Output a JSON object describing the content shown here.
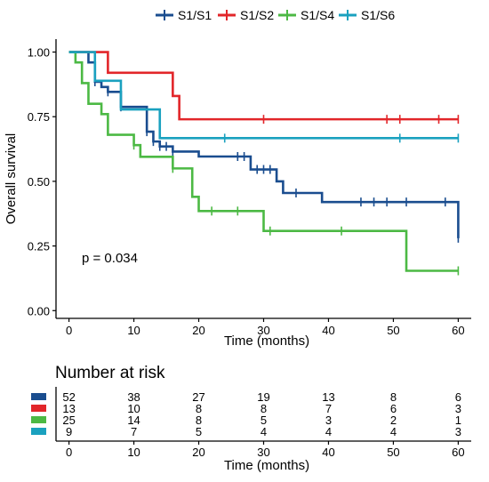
{
  "chart_data": [
    {
      "type": "line",
      "subtype": "kaplan-meier",
      "title": "",
      "xlabel": "Time (months)",
      "ylabel": "Overall survival",
      "xlim": [
        -2,
        62
      ],
      "ylim": [
        -0.03,
        1.05
      ],
      "x_ticks": [
        "0",
        "10",
        "20",
        "30",
        "40",
        "50",
        "60"
      ],
      "y_ticks": [
        "0.00",
        "0.25",
        "0.50",
        "0.75",
        "1.00"
      ],
      "grid": false,
      "legend_position": "top",
      "annotation": "p = 0.034",
      "series": [
        {
          "name": "S1/S1",
          "color": "#1a4d8f",
          "steps": [
            [
              0,
              1.0
            ],
            [
              3,
              0.96
            ],
            [
              4,
              0.885
            ],
            [
              5,
              0.865
            ],
            [
              6,
              0.846
            ],
            [
              8,
              0.788
            ],
            [
              12,
              0.692
            ],
            [
              13,
              0.654
            ],
            [
              14,
              0.635
            ],
            [
              16,
              0.615
            ],
            [
              20,
              0.596
            ],
            [
              28,
              0.546
            ],
            [
              32,
              0.5
            ],
            [
              33,
              0.455
            ],
            [
              39,
              0.42
            ],
            [
              60,
              0.42
            ],
            [
              60,
              0.28
            ]
          ],
          "censored": [
            [
              4,
              0.885
            ],
            [
              6,
              0.846
            ],
            [
              8,
              0.788
            ],
            [
              12,
              0.692
            ],
            [
              13,
              0.654
            ],
            [
              14,
              0.635
            ],
            [
              15,
              0.635
            ],
            [
              16,
              0.615
            ],
            [
              26,
              0.596
            ],
            [
              27,
              0.596
            ],
            [
              29,
              0.546
            ],
            [
              30,
              0.546
            ],
            [
              31,
              0.546
            ],
            [
              35,
              0.455
            ],
            [
              45,
              0.42
            ],
            [
              47,
              0.42
            ],
            [
              49,
              0.42
            ],
            [
              52,
              0.42
            ],
            [
              58,
              0.42
            ],
            [
              60,
              0.28
            ]
          ]
        },
        {
          "name": "S1/S2",
          "color": "#e2262a",
          "steps": [
            [
              0,
              1.0
            ],
            [
              6,
              0.92
            ],
            [
              16,
              0.83
            ],
            [
              17,
              0.74
            ],
            [
              60,
              0.74
            ]
          ],
          "censored": [
            [
              30,
              0.74
            ],
            [
              49,
              0.74
            ],
            [
              51,
              0.74
            ],
            [
              57,
              0.74
            ],
            [
              60,
              0.74
            ]
          ]
        },
        {
          "name": "S1/S4",
          "color": "#4cb944",
          "steps": [
            [
              0,
              1.0
            ],
            [
              1,
              0.96
            ],
            [
              2,
              0.88
            ],
            [
              3,
              0.8
            ],
            [
              5,
              0.76
            ],
            [
              6,
              0.68
            ],
            [
              10,
              0.64
            ],
            [
              11,
              0.595
            ],
            [
              16,
              0.55
            ],
            [
              19,
              0.44
            ],
            [
              20,
              0.385
            ],
            [
              30,
              0.308
            ],
            [
              52,
              0.154
            ],
            [
              60,
              0.154
            ]
          ],
          "censored": [
            [
              10,
              0.64
            ],
            [
              16,
              0.55
            ],
            [
              22,
              0.385
            ],
            [
              26,
              0.385
            ],
            [
              31,
              0.308
            ],
            [
              42,
              0.308
            ],
            [
              60,
              0.154
            ]
          ]
        },
        {
          "name": "S1/S6",
          "color": "#1aa1bf",
          "steps": [
            [
              0,
              1.0
            ],
            [
              4,
              0.889
            ],
            [
              8,
              0.778
            ],
            [
              10,
              0.778
            ],
            [
              14,
              0.667
            ],
            [
              60,
              0.667
            ]
          ],
          "censored": [
            [
              24,
              0.667
            ],
            [
              51,
              0.667
            ],
            [
              60,
              0.667
            ]
          ]
        }
      ]
    },
    {
      "type": "table",
      "title": "Number at risk",
      "xlabel": "Time (months)",
      "x_ticks": [
        "0",
        "10",
        "20",
        "30",
        "40",
        "50",
        "60"
      ],
      "rows": [
        {
          "color": "#1a4d8f",
          "values": [
            "52",
            "38",
            "27",
            "19",
            "13",
            "8",
            "6"
          ]
        },
        {
          "color": "#e2262a",
          "values": [
            "13",
            "10",
            "8",
            "8",
            "7",
            "6",
            "3"
          ]
        },
        {
          "color": "#4cb944",
          "values": [
            "25",
            "14",
            "8",
            "5",
            "3",
            "2",
            "1"
          ]
        },
        {
          "color": "#1aa1bf",
          "values": [
            "9",
            "7",
            "5",
            "4",
            "4",
            "4",
            "3"
          ]
        }
      ]
    }
  ]
}
